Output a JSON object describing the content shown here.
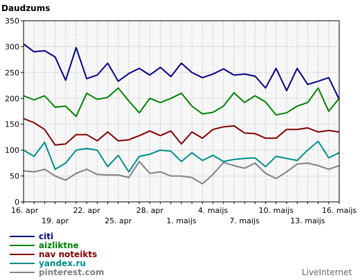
{
  "chart_data": {
    "type": "line",
    "title": "Daudzums",
    "credit": "LiveInternet",
    "ylim": [
      0,
      350
    ],
    "yticks": [
      0,
      50,
      100,
      150,
      200,
      250,
      300,
      350
    ],
    "grid": true,
    "legend_position": "bottom-left",
    "x": [
      "16. apr",
      "17. apr",
      "18. apr",
      "19. apr",
      "20. apr",
      "21. apr",
      "22. apr",
      "23. apr",
      "24. apr",
      "25. apr",
      "26. apr",
      "27. apr",
      "28. apr",
      "29. apr",
      "30. apr",
      "1. maijs",
      "2. maijs",
      "3. maijs",
      "4. maijs",
      "5. maijs",
      "6. maijs",
      "7. maijs",
      "8. maijs",
      "9. maijs",
      "10. maijs",
      "11. maijs",
      "12. maijs",
      "13. maijs",
      "14. maijs",
      "15. maijs",
      "16. maijs"
    ],
    "xtick_labels": [
      {
        "index": 0,
        "label": "16. apr",
        "row": 1
      },
      {
        "index": 3,
        "label": "19. apr",
        "row": 2
      },
      {
        "index": 6,
        "label": "22. apr",
        "row": 1
      },
      {
        "index": 9,
        "label": "25. apr",
        "row": 2
      },
      {
        "index": 12,
        "label": "28. apr",
        "row": 1
      },
      {
        "index": 15,
        "label": "1. maijs",
        "row": 2
      },
      {
        "index": 18,
        "label": "4. maijs",
        "row": 1
      },
      {
        "index": 21,
        "label": "7. maijs",
        "row": 2
      },
      {
        "index": 24,
        "label": "10. maijs",
        "row": 1
      },
      {
        "index": 27,
        "label": "13. maijs",
        "row": 2
      },
      {
        "index": 30,
        "label": "16. maijs",
        "row": 1
      }
    ],
    "series": [
      {
        "name": "citi",
        "color": "#000080",
        "values": [
          305,
          290,
          292,
          280,
          235,
          298,
          238,
          245,
          268,
          233,
          248,
          258,
          245,
          260,
          242,
          268,
          250,
          240,
          247,
          257,
          245,
          247,
          243,
          220,
          258,
          215,
          258,
          227,
          233,
          240,
          198
        ]
      },
      {
        "name": "aizliktne",
        "color": "#008000",
        "values": [
          205,
          197,
          205,
          183,
          185,
          165,
          210,
          198,
          202,
          220,
          195,
          172,
          200,
          192,
          200,
          210,
          185,
          170,
          173,
          185,
          211,
          192,
          205,
          193,
          168,
          172,
          185,
          192,
          220,
          175,
          200
        ]
      },
      {
        "name": "nav noteikts",
        "color": "#800000",
        "values": [
          161,
          153,
          140,
          110,
          112,
          130,
          130,
          118,
          135,
          118,
          120,
          128,
          137,
          128,
          137,
          112,
          135,
          123,
          140,
          145,
          147,
          133,
          132,
          123,
          123,
          140,
          140,
          143,
          135,
          138,
          135
        ]
      },
      {
        "name": "yandex.ru",
        "color": "#008b8b",
        "values": [
          100,
          88,
          115,
          63,
          75,
          100,
          103,
          100,
          68,
          90,
          58,
          88,
          92,
          100,
          98,
          78,
          95,
          80,
          90,
          78,
          82,
          84,
          85,
          68,
          88,
          84,
          80,
          100,
          117,
          85,
          95
        ]
      },
      {
        "name": "pinterest.com",
        "color": "#808080",
        "values": [
          60,
          58,
          63,
          50,
          42,
          55,
          63,
          53,
          52,
          52,
          47,
          78,
          55,
          58,
          50,
          50,
          47,
          35,
          53,
          76,
          70,
          65,
          75,
          55,
          45,
          58,
          73,
          75,
          70,
          63,
          70
        ]
      }
    ]
  }
}
